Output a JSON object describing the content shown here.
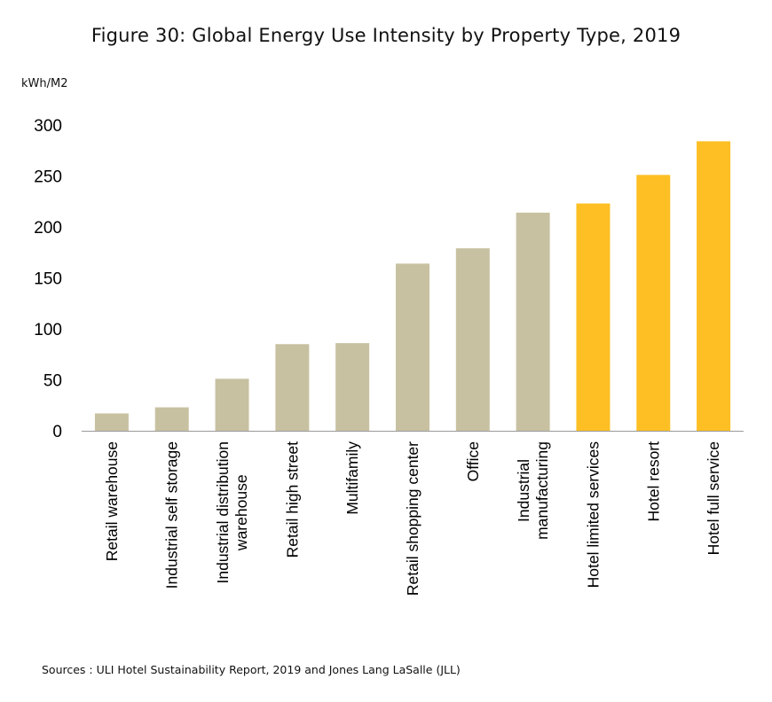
{
  "chart_data": {
    "type": "bar",
    "title": "Figure 30: Global Energy Use Intensity by Property Type, 2019",
    "ylabel": "kWh/M2",
    "xlabel": "",
    "ylim": [
      0,
      300
    ],
    "yticks": [
      0,
      50,
      100,
      150,
      200,
      250,
      300
    ],
    "grid": false,
    "legend": "none",
    "categories": [
      [
        "Retail warehouse"
      ],
      [
        "Industrial self storage"
      ],
      [
        "Industrial distribution",
        "warehouse"
      ],
      [
        "Retail high street"
      ],
      [
        "Multifamily"
      ],
      [
        "Retail shopping center"
      ],
      [
        "Office"
      ],
      [
        "Industrial",
        "manufacturing"
      ],
      [
        "Hotel limited services"
      ],
      [
        "Hotel resort"
      ],
      [
        "Hotel full service"
      ]
    ],
    "values": [
      17,
      23,
      51,
      85,
      86,
      164,
      179,
      214,
      223,
      251,
      284
    ],
    "colors": [
      "#c8c1a1",
      "#c8c1a1",
      "#c8c1a1",
      "#c8c1a1",
      "#c8c1a1",
      "#c8c1a1",
      "#c8c1a1",
      "#c8c1a1",
      "#fdbf24",
      "#fdbf24",
      "#fdbf24"
    ],
    "source": "Sources : ULI Hotel Sustainability Report, 2019 and Jones Lang LaSalle (JLL)"
  }
}
